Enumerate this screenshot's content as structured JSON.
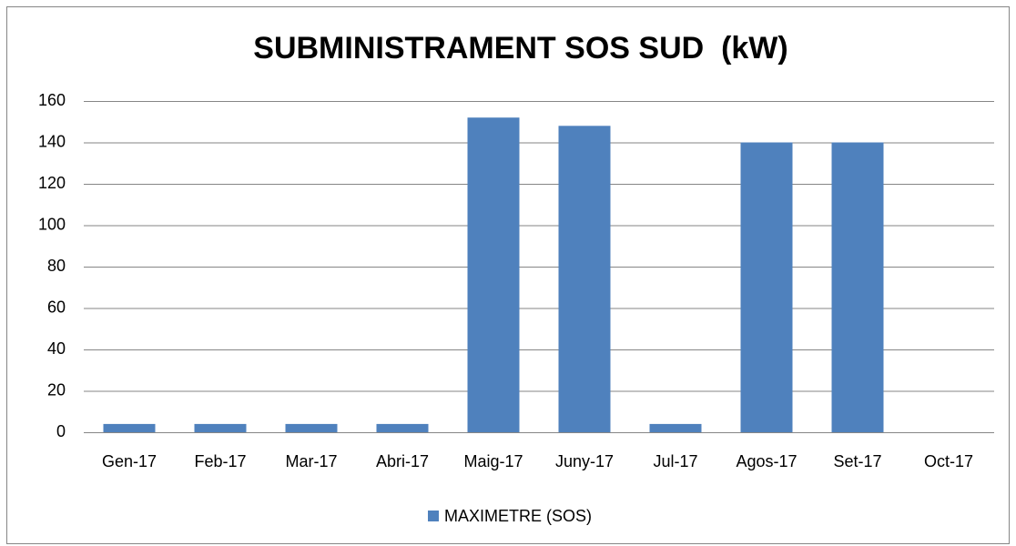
{
  "chart_data": {
    "type": "bar",
    "title": "SUBMINISTRAMENT SOS SUD  (kW)",
    "categories": [
      "Gen-17",
      "Feb-17",
      "Mar-17",
      "Abri-17",
      "Maig-17",
      "Juny-17",
      "Jul-17",
      "Agos-17",
      "Set-17",
      "Oct-17"
    ],
    "series": [
      {
        "name": "MAXIMETRE (SOS)",
        "color": "#4f81bd",
        "values": [
          4,
          4,
          4,
          4,
          152,
          148,
          4,
          140,
          140,
          null
        ]
      }
    ],
    "ylim": [
      0,
      160
    ],
    "yticks": [
      0,
      20,
      40,
      60,
      80,
      100,
      120,
      140,
      160
    ],
    "grid": true,
    "legend": "bottom"
  }
}
